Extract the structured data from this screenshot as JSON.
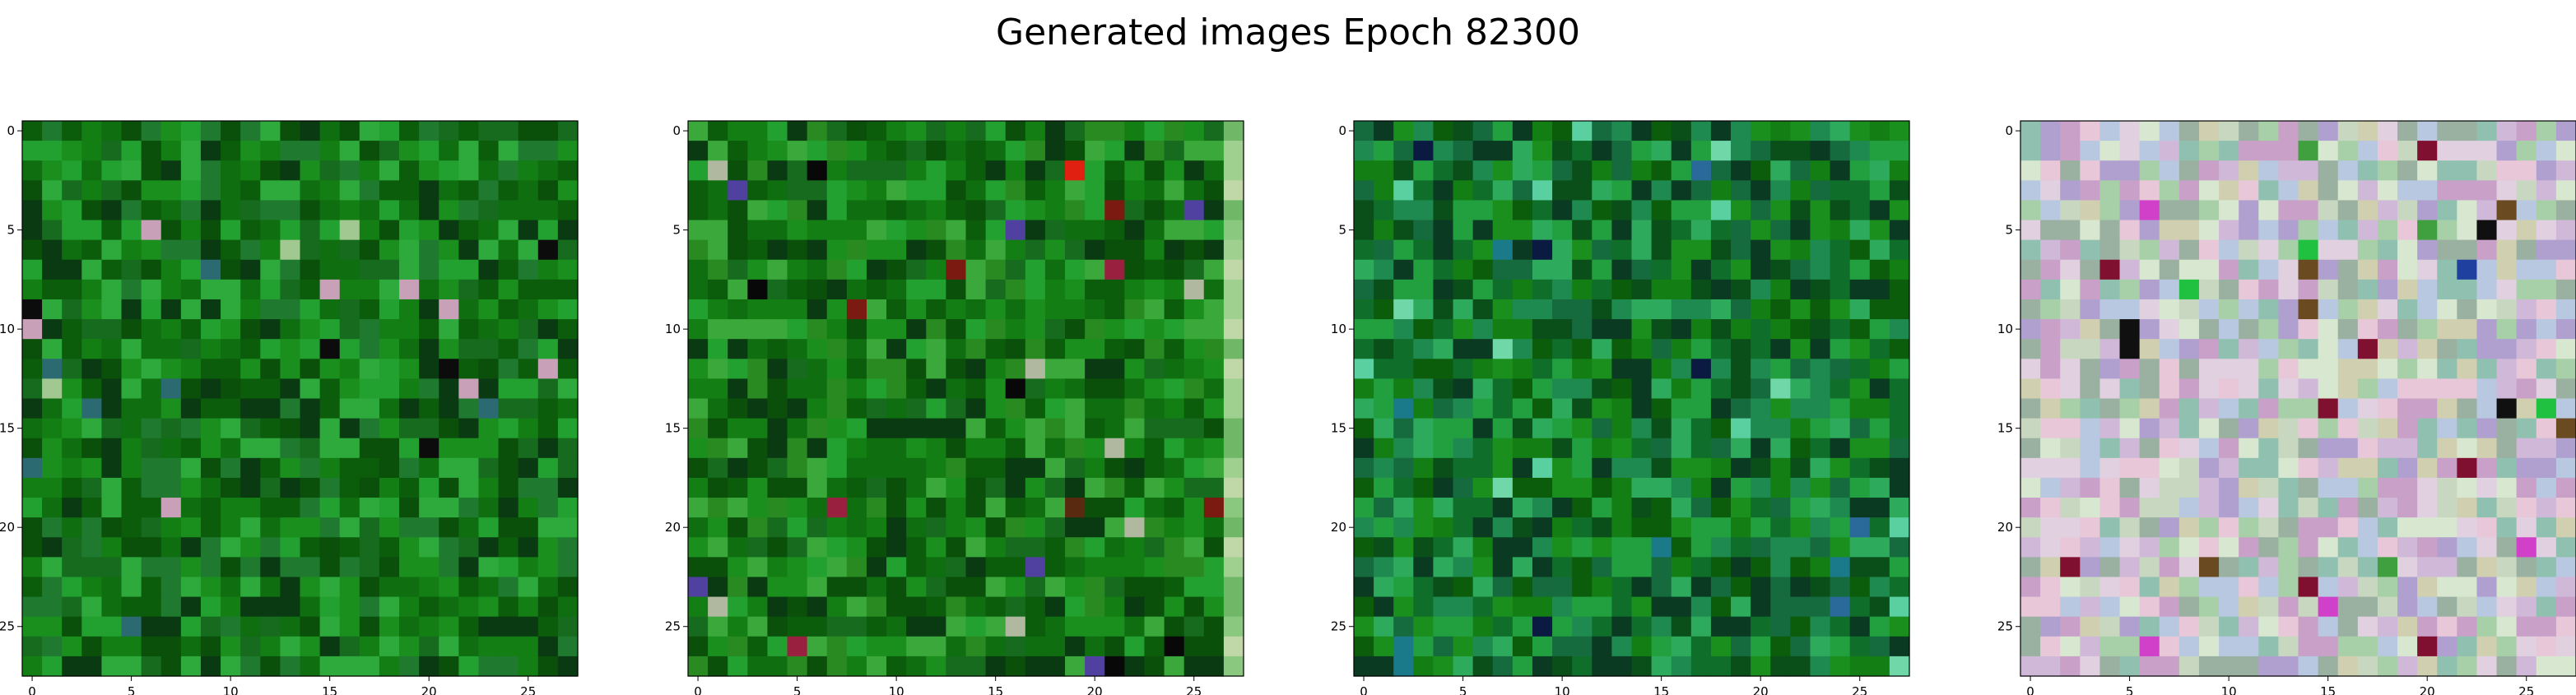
{
  "figure": {
    "title": "Generated images Epoch 82300"
  },
  "chart_data": [
    {
      "type": "heatmap",
      "description": "28x28 RGB generated image, predominantly green pixels",
      "grid_size": [
        28,
        28
      ],
      "palette": [
        "#0b5c0b",
        "#137e13",
        "#1a8f1e",
        "#0f6e10",
        "#22a030",
        "#0a4f0a",
        "#2eaa3c",
        "#166b1e",
        "#0a3a12",
        "#1f7a30"
      ],
      "accent_colors": [
        "#0c0c0c",
        "#a0c890",
        "#c8a0b8",
        "#2a6a70"
      ],
      "xticks": [
        0,
        5,
        10,
        15,
        20,
        25
      ],
      "yticks": [
        0,
        5,
        10,
        15,
        20,
        25
      ],
      "xlim": [
        -0.5,
        27.5
      ],
      "ylim": [
        27.5,
        -0.5
      ],
      "grid": false
    },
    {
      "type": "heatmap",
      "description": "28x28 RGB generated image, green with a few red, dark and light pixels; lighter right column",
      "grid_size": [
        28,
        28
      ],
      "palette": [
        "#0b5c0b",
        "#137e13",
        "#1a8f1e",
        "#0f6e10",
        "#22a030",
        "#0a4f0a",
        "#3aa83a",
        "#166b1e",
        "#0a3a12",
        "#2a8a22"
      ],
      "accent_colors": [
        "#7a1a10",
        "#e02010",
        "#5a2a10",
        "#b0b8a0",
        "#5040a0",
        "#080808",
        "#9a2040"
      ],
      "edge_column_colors": [
        "#8ac880",
        "#a0d090",
        "#70b868",
        "#c0d8a8"
      ],
      "xticks": [
        0,
        5,
        10,
        15,
        20,
        25
      ],
      "yticks": [
        0,
        5,
        10,
        15,
        20,
        25
      ],
      "xlim": [
        -0.5,
        27.5
      ],
      "ylim": [
        27.5,
        -0.5
      ],
      "grid": false
    },
    {
      "type": "heatmap",
      "description": "28x28 RGB generated image, green and teal pixels with a lighter horizontal band",
      "grid_size": [
        28,
        28
      ],
      "palette": [
        "#0b5c0b",
        "#137e13",
        "#1a8f1e",
        "#0f6e2a",
        "#22a040",
        "#0a4f1a",
        "#2eaa5c",
        "#166b3e",
        "#0a3a22",
        "#1f8a50"
      ],
      "accent_colors": [
        "#1a7a8a",
        "#5ad0a0",
        "#0a1a40",
        "#2a6a9a",
        "#70d8a8"
      ],
      "xticks": [
        0,
        5,
        10,
        15,
        20,
        25
      ],
      "yticks": [
        0,
        5,
        10,
        15,
        20,
        25
      ],
      "xlim": [
        -0.5,
        27.5
      ],
      "ylim": [
        27.5,
        -0.5
      ],
      "grid": false
    },
    {
      "type": "heatmap",
      "description": "28x28 RGB generated image, pastel multicolor noise with green border pixels",
      "grid_size": [
        28,
        28
      ],
      "palette": [
        "#c8d8c0",
        "#d0b8d8",
        "#b8c8e0",
        "#e0d0e0",
        "#a8d0a8",
        "#c8a0c8",
        "#d8e8d0",
        "#9ab0a0",
        "#e8c8d8",
        "#b0a0d0",
        "#d0d0b0",
        "#90c0b0"
      ],
      "accent_colors": [
        "#101010",
        "#801030",
        "#d040c8",
        "#2040a0",
        "#40a040",
        "#20c040",
        "#6a4a20"
      ],
      "xticks": [
        0,
        5,
        10,
        15,
        20,
        25
      ],
      "yticks": [
        0,
        5,
        10,
        15,
        20,
        25
      ],
      "xlim": [
        -0.5,
        27.5
      ],
      "ylim": [
        27.5,
        -0.5
      ],
      "grid": false
    }
  ]
}
